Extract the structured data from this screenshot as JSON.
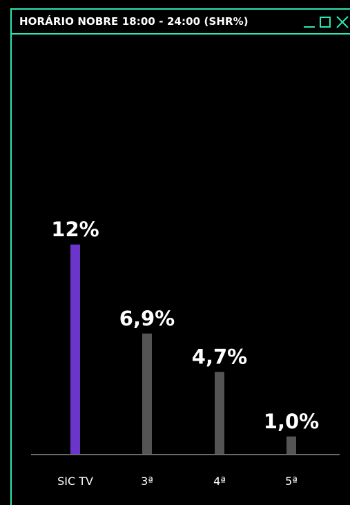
{
  "window": {
    "title": "HORÁRIO NOBRE 18:00 - 24:00 (SHR%)",
    "accent_color": "#2ee6b3",
    "controls": [
      "minimize-icon",
      "maximize-icon",
      "close-icon"
    ]
  },
  "chart_data": {
    "type": "bar",
    "categories": [
      "SIC TV",
      "3ª",
      "4ª",
      "5ª"
    ],
    "values": [
      12,
      6.9,
      4.7,
      1.0
    ],
    "data_labels": [
      "12%",
      "6,9%",
      "4,7%",
      "1,0%"
    ],
    "colors": [
      "#6c35c9",
      "#545454",
      "#545454",
      "#545454"
    ],
    "ylim": [
      0,
      12
    ],
    "grid": false,
    "legend": "none"
  }
}
